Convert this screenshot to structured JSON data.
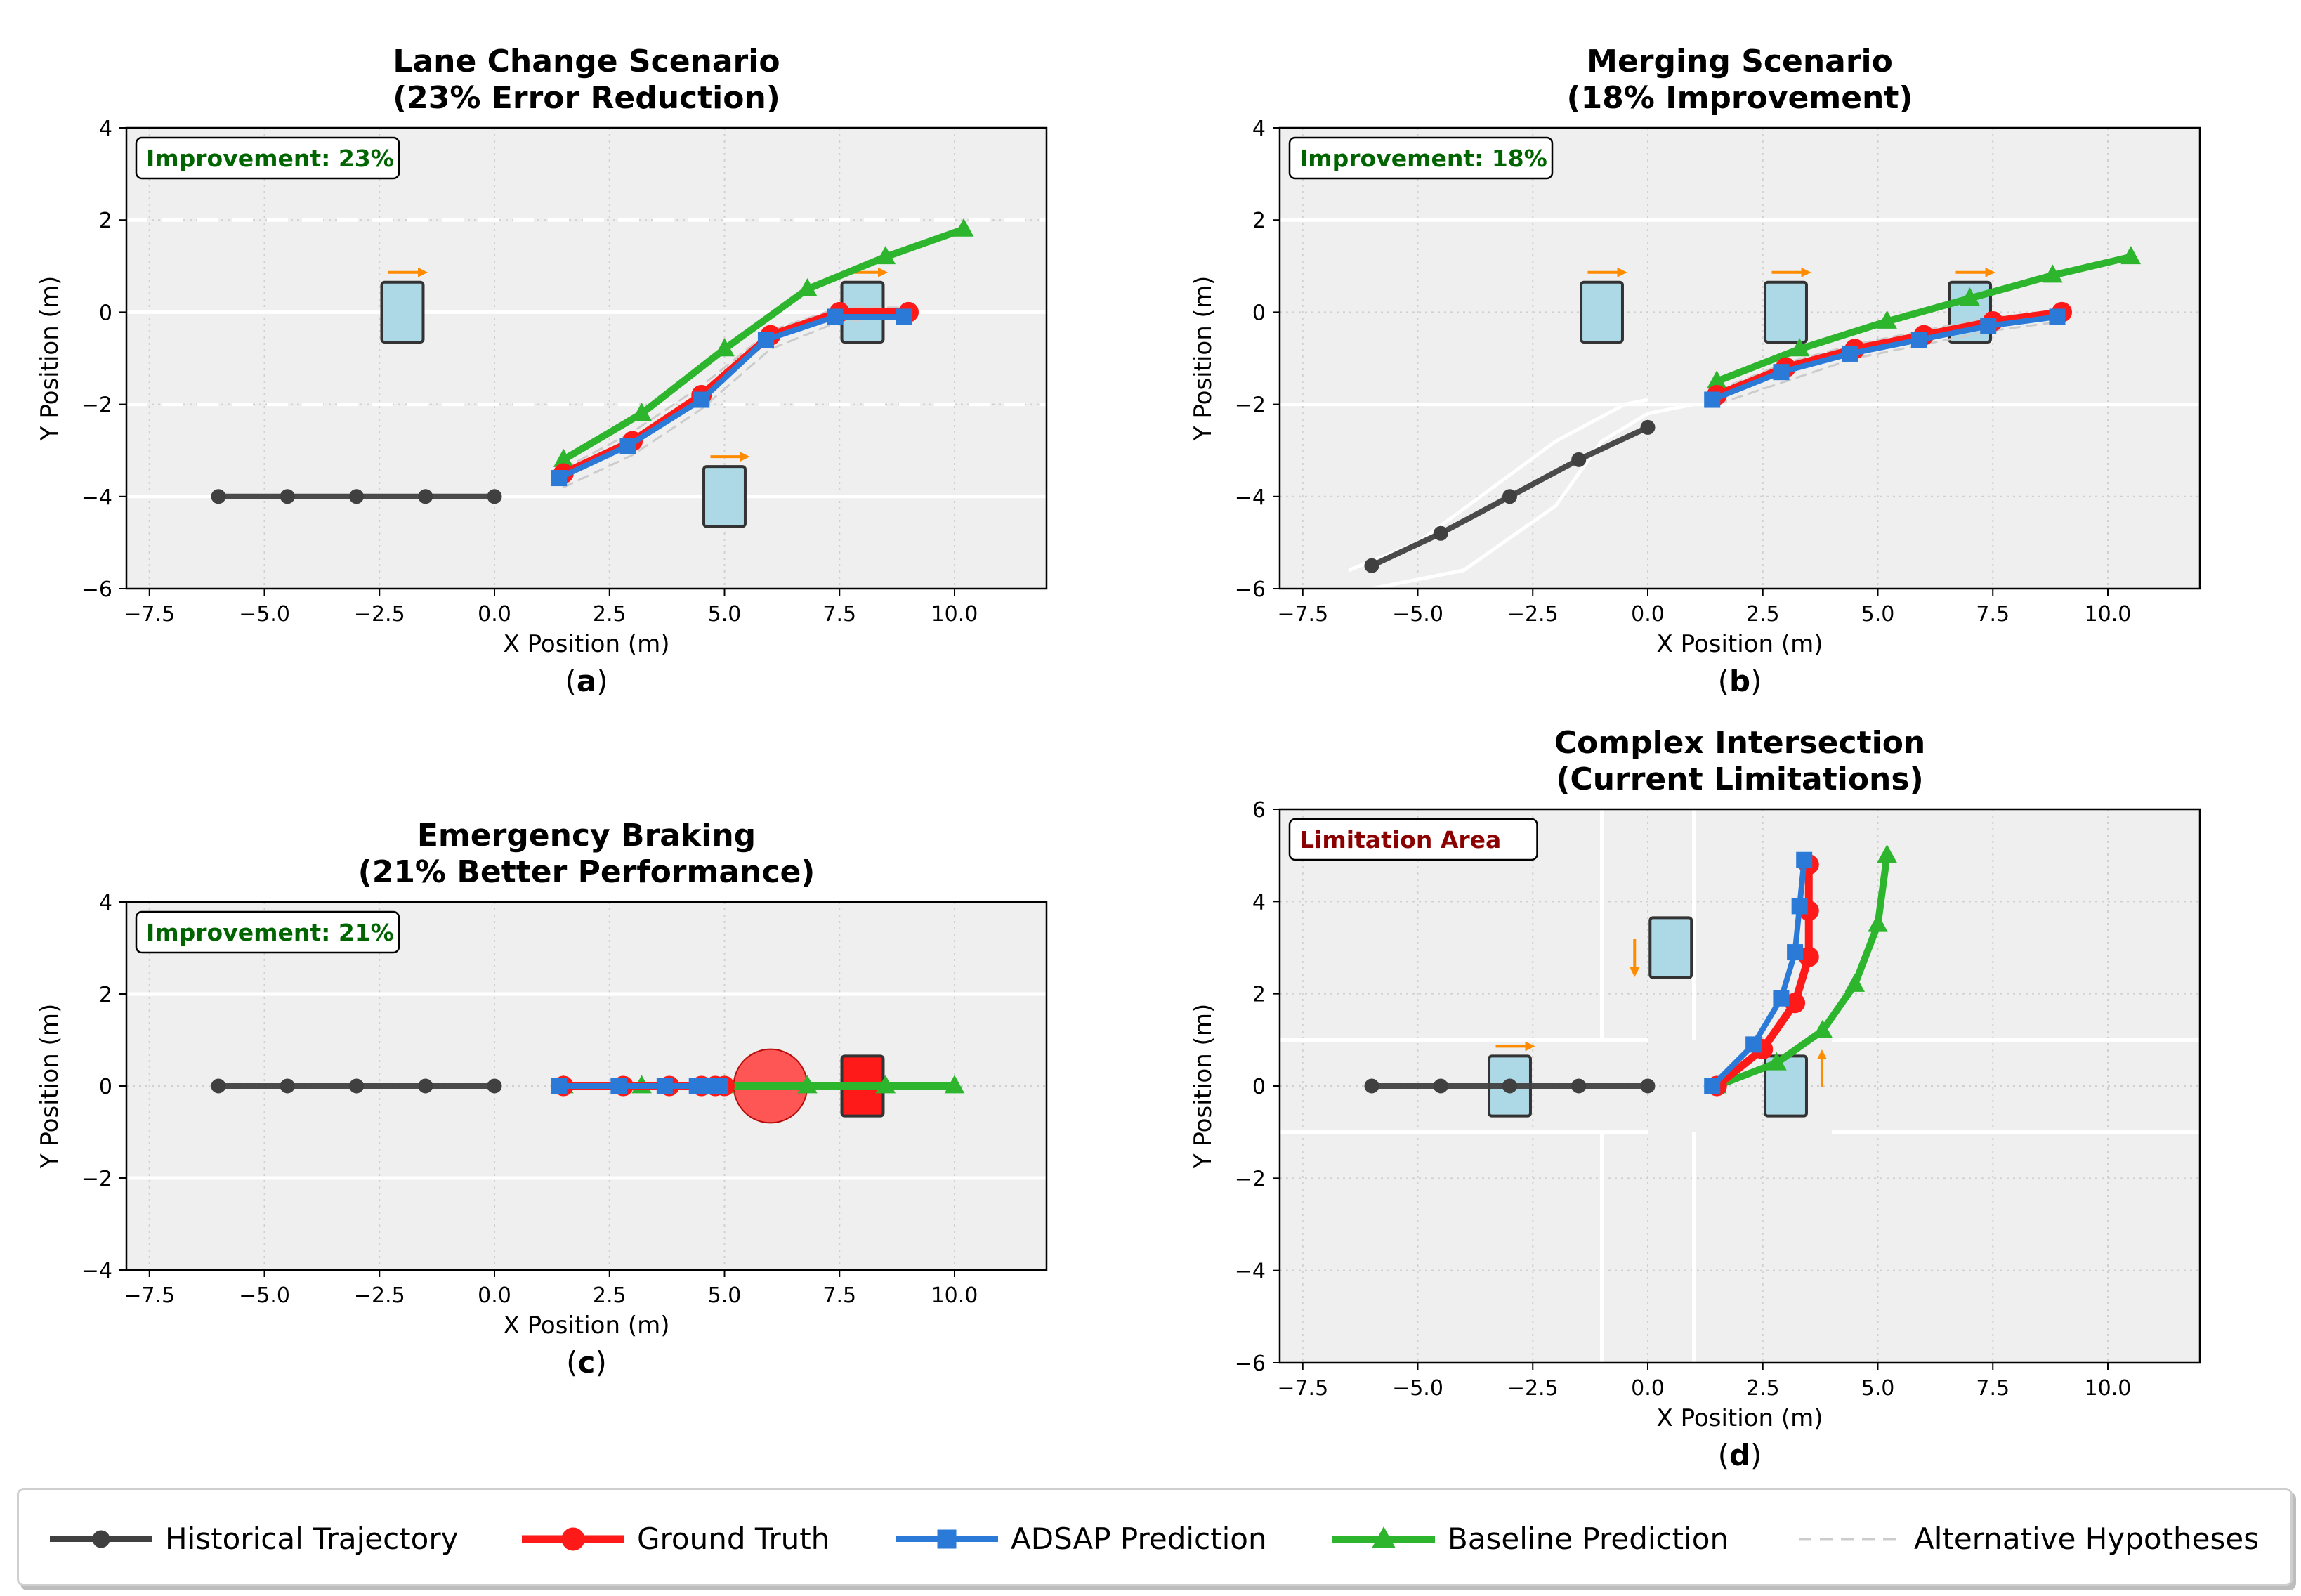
{
  "colors": {
    "historical": "#404040",
    "ground_truth": "#ff1a1a",
    "adsap": "#2b7ad8",
    "baseline": "#2db52d",
    "alternative": "#cccccc",
    "vehicle_fill": "#add8e6",
    "arrow": "#ff8c00",
    "improve_text": "#006400",
    "limit_text": "#8b0000",
    "axes_bg": "#efefef"
  },
  "legend": {
    "items": [
      {
        "key": "historical",
        "label": "Historical Trajectory",
        "marker": "circle",
        "dashed": false
      },
      {
        "key": "ground_truth",
        "label": "Ground Truth",
        "marker": "circle",
        "dashed": false
      },
      {
        "key": "adsap",
        "label": "ADSAP Prediction",
        "marker": "square",
        "dashed": false
      },
      {
        "key": "baseline",
        "label": "Baseline Prediction",
        "marker": "triangle",
        "dashed": false
      },
      {
        "key": "alternative",
        "label": "Alternative Hypotheses",
        "marker": "none",
        "dashed": true
      }
    ]
  },
  "chart_data": [
    {
      "type": "line",
      "panel_label": "a",
      "title": [
        "Lane Change Scenario",
        "(23% Error Reduction)"
      ],
      "xlabel": "X Position (m)",
      "ylabel": "Y Position (m)",
      "xlim": [
        -8.0,
        12.0
      ],
      "ylim": [
        -6,
        4
      ],
      "xticks": [
        -7.5,
        -5.0,
        -2.5,
        0.0,
        2.5,
        5.0,
        7.5,
        10.0
      ],
      "xtick_labels": [
        "−7.5",
        "−5.0",
        "−2.5",
        "0.0",
        "2.5",
        "5.0",
        "7.5",
        "10.0"
      ],
      "yticks": [
        -6,
        -4,
        -2,
        0,
        2,
        4
      ],
      "ytick_labels": [
        "−6",
        "−4",
        "−2",
        "0",
        "2",
        "4"
      ],
      "grid": true,
      "badge": {
        "text": "Improvement: 23%",
        "kind": "improve"
      },
      "lane_lines": [
        {
          "points": [
            [
              -8,
              2
            ],
            [
              12,
              2
            ]
          ],
          "dashed": true
        },
        {
          "points": [
            [
              -8,
              0
            ],
            [
              12,
              0
            ]
          ],
          "dashed": false
        },
        {
          "points": [
            [
              -8,
              -2
            ],
            [
              12,
              -2
            ]
          ],
          "dashed": true
        },
        {
          "points": [
            [
              -8,
              -4
            ],
            [
              12,
              -4
            ]
          ],
          "dashed": false
        }
      ],
      "vehicles": [
        {
          "x": -2.0,
          "y": 0.0,
          "dir": "right"
        },
        {
          "x": 8.0,
          "y": 0.0,
          "dir": "right"
        },
        {
          "x": 5.0,
          "y": -4.0,
          "dir": "right"
        }
      ],
      "obstacles": [],
      "series": [
        {
          "key": "alternative",
          "x": [
            1.5,
            3.0,
            4.5,
            6.0,
            7.5,
            9.0
          ],
          "y": [
            -3.8,
            -3.1,
            -2.1,
            -0.8,
            -0.2,
            -0.1
          ]
        },
        {
          "key": "alternative",
          "x": [
            1.5,
            3.0,
            4.5,
            6.0,
            7.5,
            9.0
          ],
          "y": [
            -3.4,
            -2.6,
            -1.6,
            -0.4,
            0.1,
            0.1
          ]
        },
        {
          "key": "historical",
          "x": [
            -6.0,
            -4.5,
            -3.0,
            -1.5,
            0.0
          ],
          "y": [
            -4.0,
            -4.0,
            -4.0,
            -4.0,
            -4.0
          ]
        },
        {
          "key": "baseline",
          "x": [
            1.5,
            3.2,
            5.0,
            6.8,
            8.5,
            10.2
          ],
          "y": [
            -3.2,
            -2.2,
            -0.8,
            0.5,
            1.2,
            1.8
          ]
        },
        {
          "key": "ground_truth",
          "x": [
            1.5,
            3.0,
            4.5,
            6.0,
            7.5,
            9.0
          ],
          "y": [
            -3.5,
            -2.8,
            -1.8,
            -0.5,
            0.0,
            0.0
          ]
        },
        {
          "key": "adsap",
          "x": [
            1.4,
            2.9,
            4.5,
            5.9,
            7.4,
            8.9
          ],
          "y": [
            -3.6,
            -2.9,
            -1.9,
            -0.6,
            -0.1,
            -0.1
          ]
        }
      ]
    },
    {
      "type": "line",
      "panel_label": "b",
      "title": [
        "Merging Scenario",
        "(18% Improvement)"
      ],
      "xlabel": "X Position (m)",
      "ylabel": "Y Position (m)",
      "xlim": [
        -8.0,
        12.0
      ],
      "ylim": [
        -6,
        4
      ],
      "xticks": [
        -7.5,
        -5.0,
        -2.5,
        0.0,
        2.5,
        5.0,
        7.5,
        10.0
      ],
      "xtick_labels": [
        "−7.5",
        "−5.0",
        "−2.5",
        "0.0",
        "2.5",
        "5.0",
        "7.5",
        "10.0"
      ],
      "yticks": [
        -6,
        -4,
        -2,
        0,
        2,
        4
      ],
      "ytick_labels": [
        "−6",
        "−4",
        "−2",
        "0",
        "2",
        "4"
      ],
      "grid": true,
      "badge": {
        "text": "Improvement: 18%",
        "kind": "improve"
      },
      "lane_lines": [
        {
          "points": [
            [
              -8,
              2
            ],
            [
              12,
              2
            ]
          ],
          "dashed": false
        },
        {
          "points": [
            [
              -8,
              -2
            ],
            [
              12,
              -2
            ]
          ],
          "dashed": false
        },
        {
          "points": [
            [
              -8,
              -6
            ],
            [
              -6,
              -6
            ],
            [
              -4,
              -5.6
            ],
            [
              -2,
              -4.2
            ],
            [
              -1,
              -2.8
            ],
            [
              0,
              -2.2
            ],
            [
              1,
              -2.0
            ],
            [
              2,
              -2.0
            ]
          ],
          "dashed": false
        },
        {
          "points": [
            [
              -6.5,
              -5.6
            ],
            [
              -5,
              -5.0
            ],
            [
              -3.5,
              -3.9
            ],
            [
              -2.0,
              -2.8
            ],
            [
              -0.5,
              -2.0
            ],
            [
              0,
              -1.9
            ]
          ],
          "dashed": false
        }
      ],
      "vehicles": [
        {
          "x": -1.0,
          "y": 0.0,
          "dir": "right"
        },
        {
          "x": 3.0,
          "y": 0.0,
          "dir": "right"
        },
        {
          "x": 7.0,
          "y": 0.0,
          "dir": "right"
        }
      ],
      "obstacles": [],
      "series": [
        {
          "key": "alternative",
          "x": [
            1.5,
            3.0,
            4.5,
            6.0,
            7.5,
            9.0
          ],
          "y": [
            -2.0,
            -1.5,
            -1.0,
            -0.7,
            -0.4,
            -0.2
          ]
        },
        {
          "key": "alternative",
          "x": [
            1.5,
            3.0,
            4.5,
            6.0,
            7.5,
            9.0
          ],
          "y": [
            -1.7,
            -1.1,
            -0.7,
            -0.4,
            -0.1,
            0.0
          ]
        },
        {
          "key": "historical",
          "x": [
            -6.0,
            -4.5,
            -3.0,
            -1.5,
            0.0
          ],
          "y": [
            -5.5,
            -4.8,
            -4.0,
            -3.2,
            -2.5
          ]
        },
        {
          "key": "baseline",
          "x": [
            1.5,
            3.3,
            5.2,
            7.0,
            8.8,
            10.5
          ],
          "y": [
            -1.5,
            -0.8,
            -0.2,
            0.3,
            0.8,
            1.2
          ]
        },
        {
          "key": "ground_truth",
          "x": [
            1.5,
            3.0,
            4.5,
            6.0,
            7.5,
            9.0
          ],
          "y": [
            -1.8,
            -1.2,
            -0.8,
            -0.5,
            -0.2,
            0.0
          ]
        },
        {
          "key": "adsap",
          "x": [
            1.4,
            2.9,
            4.4,
            5.9,
            7.4,
            8.9
          ],
          "y": [
            -1.9,
            -1.3,
            -0.9,
            -0.6,
            -0.3,
            -0.1
          ]
        }
      ]
    },
    {
      "type": "line",
      "panel_label": "c",
      "title": [
        "Emergency Braking",
        "(21% Better Performance)"
      ],
      "xlabel": "X Position (m)",
      "ylabel": "Y Position (m)",
      "xlim": [
        -8.0,
        12.0
      ],
      "ylim": [
        -4,
        4
      ],
      "xticks": [
        -7.5,
        -5.0,
        -2.5,
        0.0,
        2.5,
        5.0,
        7.5,
        10.0
      ],
      "xtick_labels": [
        "−7.5",
        "−5.0",
        "−2.5",
        "0.0",
        "2.5",
        "5.0",
        "7.5",
        "10.0"
      ],
      "yticks": [
        -4,
        -2,
        0,
        2,
        4
      ],
      "ytick_labels": [
        "−4",
        "−2",
        "0",
        "2",
        "4"
      ],
      "grid": true,
      "badge": {
        "text": "Improvement: 21%",
        "kind": "improve"
      },
      "lane_lines": [
        {
          "points": [
            [
              -8,
              2
            ],
            [
              12,
              2
            ]
          ],
          "dashed": false
        },
        {
          "points": [
            [
              -8,
              -2
            ],
            [
              12,
              -2
            ]
          ],
          "dashed": false
        }
      ],
      "vehicles": [
        {
          "x": 8.0,
          "y": 0.0,
          "dir": "none",
          "color": "red"
        }
      ],
      "obstacles": [
        {
          "x": 6.0,
          "y": 0.0,
          "r": 0.8
        }
      ],
      "series": [
        {
          "key": "historical",
          "x": [
            -6.0,
            -4.5,
            -3.0,
            -1.5,
            0.0
          ],
          "y": [
            0,
            0,
            0,
            0,
            0
          ]
        },
        {
          "key": "baseline",
          "x": [
            1.5,
            3.2,
            5.0,
            6.8,
            8.5,
            10.0
          ],
          "y": [
            0,
            0,
            0,
            0,
            0,
            0
          ]
        },
        {
          "key": "ground_truth",
          "x": [
            1.5,
            2.8,
            3.8,
            4.5,
            4.8,
            5.0
          ],
          "y": [
            0,
            0,
            0,
            0,
            0,
            0
          ]
        },
        {
          "key": "adsap",
          "x": [
            1.4,
            2.7,
            3.7,
            4.4,
            4.7,
            4.9
          ],
          "y": [
            0,
            0,
            0,
            0,
            0,
            0
          ]
        }
      ]
    },
    {
      "type": "line",
      "panel_label": "d",
      "title": [
        "Complex Intersection",
        "(Current Limitations)"
      ],
      "xlabel": "X Position (m)",
      "ylabel": "Y Position (m)",
      "xlim": [
        -8.0,
        12.0
      ],
      "ylim": [
        -6,
        6
      ],
      "xticks": [
        -7.5,
        -5.0,
        -2.5,
        0.0,
        2.5,
        5.0,
        7.5,
        10.0
      ],
      "xtick_labels": [
        "−7.5",
        "−5.0",
        "−2.5",
        "0.0",
        "2.5",
        "5.0",
        "7.5",
        "10.0"
      ],
      "yticks": [
        -6,
        -4,
        -2,
        0,
        2,
        4,
        6
      ],
      "ytick_labels": [
        "−6",
        "−4",
        "−2",
        "0",
        "2",
        "4",
        "6"
      ],
      "grid": true,
      "badge": {
        "text": "Limitation Area",
        "kind": "limit"
      },
      "lane_lines": [
        {
          "points": [
            [
              -8,
              1
            ],
            [
              0,
              1
            ]
          ],
          "dashed": false
        },
        {
          "points": [
            [
              4,
              1
            ],
            [
              12,
              1
            ]
          ],
          "dashed": false
        },
        {
          "points": [
            [
              -8,
              -1
            ],
            [
              0,
              -1
            ]
          ],
          "dashed": false
        },
        {
          "points": [
            [
              4,
              -1
            ],
            [
              12,
              -1
            ]
          ],
          "dashed": false
        },
        {
          "points": [
            [
              -1,
              6
            ],
            [
              -1,
              1
            ]
          ],
          "dashed": false
        },
        {
          "points": [
            [
              -1,
              -1
            ],
            [
              -1,
              -6
            ]
          ],
          "dashed": false
        },
        {
          "points": [
            [
              1,
              6
            ],
            [
              1,
              1
            ]
          ],
          "dashed": false
        },
        {
          "points": [
            [
              1,
              -1
            ],
            [
              1,
              -6
            ]
          ],
          "dashed": false
        }
      ],
      "vehicles": [
        {
          "x": -3.0,
          "y": 0.0,
          "dir": "right"
        },
        {
          "x": 0.5,
          "y": 3.0,
          "dir": "down"
        },
        {
          "x": 3.0,
          "y": 0.0,
          "dir": "up"
        }
      ],
      "obstacles": [],
      "series": [
        {
          "key": "historical",
          "x": [
            -6.0,
            -4.5,
            -3.0,
            -1.5,
            0.0
          ],
          "y": [
            0,
            0,
            0,
            0,
            0
          ]
        },
        {
          "key": "baseline",
          "x": [
            1.5,
            2.8,
            3.8,
            4.5,
            5.0,
            5.2
          ],
          "y": [
            0.0,
            0.5,
            1.2,
            2.2,
            3.5,
            5.0
          ]
        },
        {
          "key": "ground_truth",
          "x": [
            1.5,
            2.5,
            3.2,
            3.5,
            3.5,
            3.5
          ],
          "y": [
            0.0,
            0.8,
            1.8,
            2.8,
            3.8,
            4.8
          ]
        },
        {
          "key": "adsap",
          "x": [
            1.4,
            2.3,
            2.9,
            3.2,
            3.3,
            3.4
          ],
          "y": [
            0.0,
            0.9,
            1.9,
            2.9,
            3.9,
            4.9
          ]
        }
      ]
    }
  ]
}
